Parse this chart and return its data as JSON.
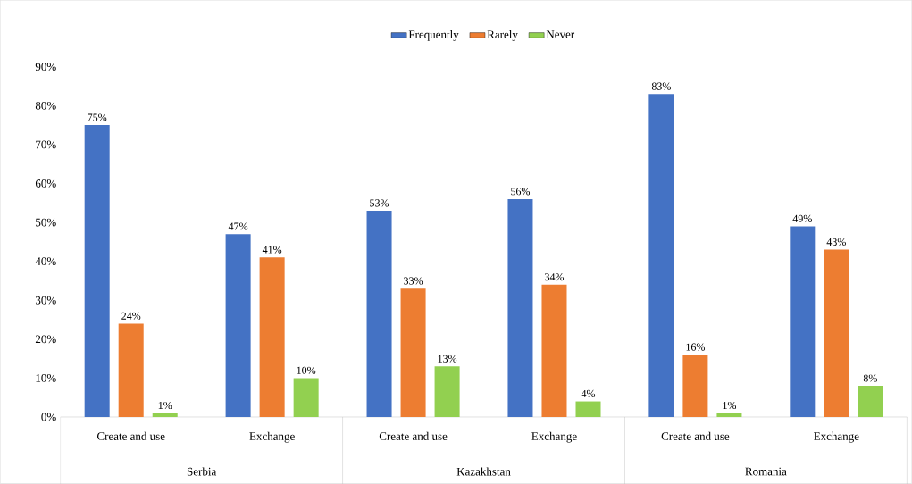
{
  "chart_data": {
    "type": "bar",
    "categories": [
      "Create and use",
      "Exchange",
      "Create and use",
      "Exchange",
      "Create and use",
      "Exchange"
    ],
    "annotations": [
      "Serbia",
      "Kazakhstan",
      "Romania"
    ],
    "series": [
      {
        "name": "Frequently",
        "color": "#4472c4",
        "values": [
          75,
          47,
          53,
          56,
          83,
          49
        ],
        "value_labels": [
          "75%",
          "47%",
          "53%",
          "56%",
          "83%",
          "49%"
        ]
      },
      {
        "name": "Rarely",
        "color": "#ed7d31",
        "values": [
          24,
          41,
          33,
          34,
          16,
          43
        ],
        "value_labels": [
          "24%",
          "41%",
          "33%",
          "34%",
          "16%",
          "43%"
        ]
      },
      {
        "name": "Never",
        "color": "#92d050",
        "values": [
          1,
          10,
          13,
          4,
          1,
          8
        ],
        "value_labels": [
          "1%",
          "10%",
          "13%",
          "4%",
          "1%",
          "8%"
        ]
      }
    ],
    "ylim": [
      0,
      90
    ],
    "yticks": [
      {
        "value": 0,
        "label": "0%"
      },
      {
        "value": 10,
        "label": "10%"
      },
      {
        "value": 20,
        "label": "20%"
      },
      {
        "value": 30,
        "label": "30%"
      },
      {
        "value": 40,
        "label": "40%"
      },
      {
        "value": 50,
        "label": "50%"
      },
      {
        "value": 60,
        "label": "60%"
      },
      {
        "value": 70,
        "label": "70%"
      },
      {
        "value": 80,
        "label": "80%"
      },
      {
        "value": 90,
        "label": "90%"
      }
    ],
    "grid": false,
    "legend": "top"
  }
}
